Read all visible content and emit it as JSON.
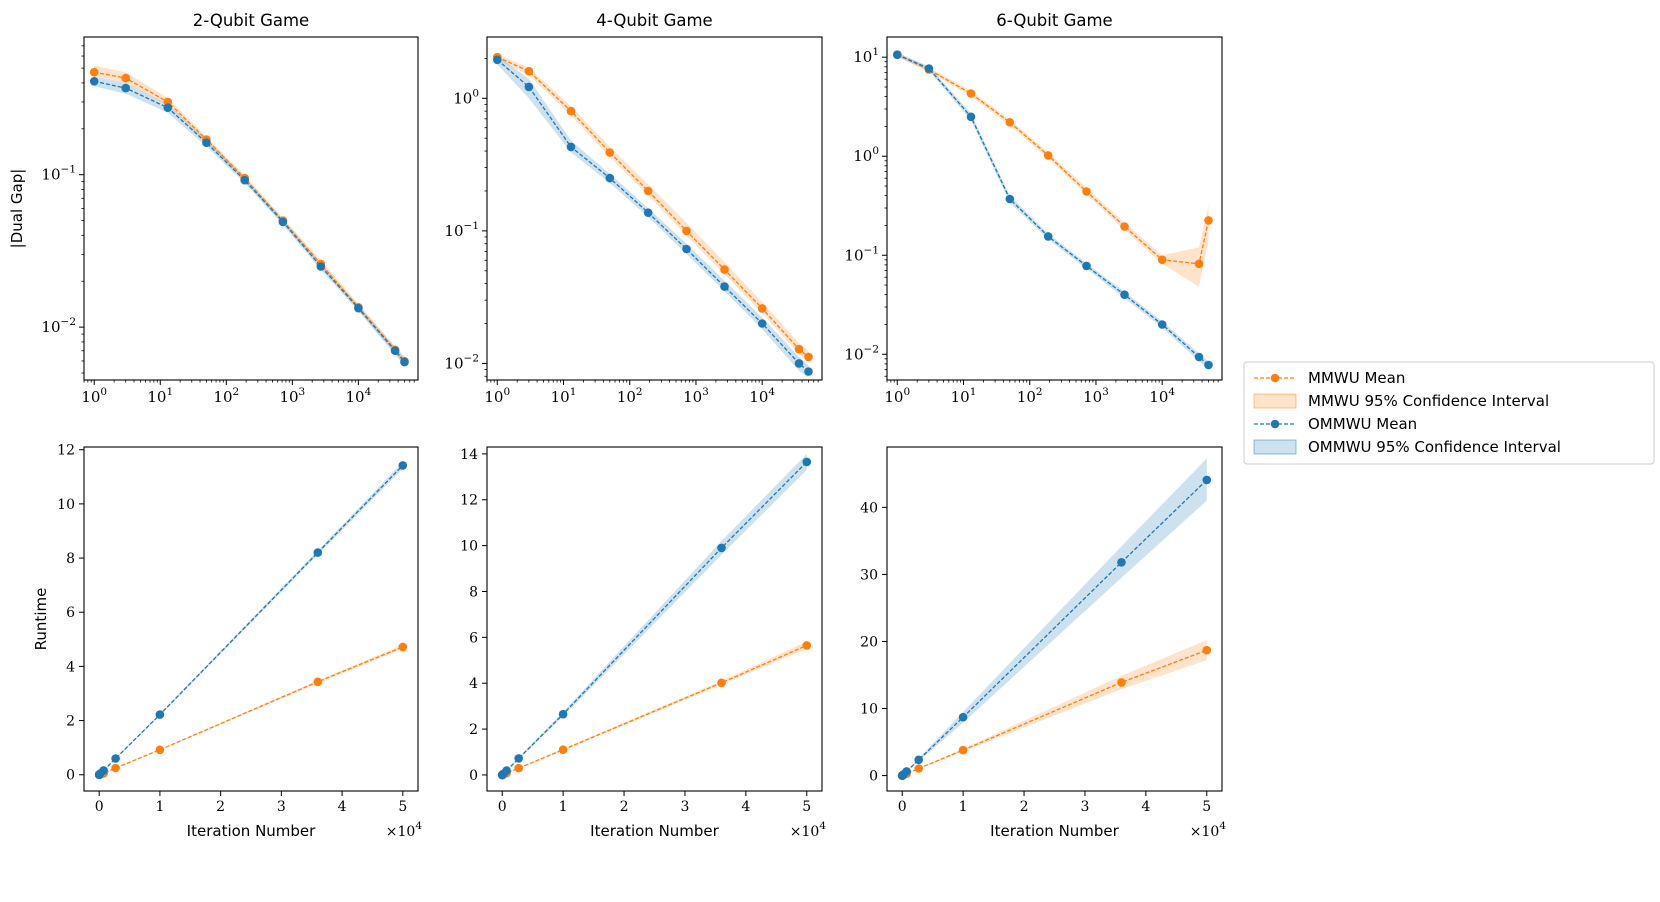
{
  "chart_data": [
    {
      "id": "dual-2",
      "type": "line",
      "title": "2-Qubit Game",
      "ylabel": "|Dual Gap|",
      "xlabel": "",
      "xscale": "log",
      "yscale": "log",
      "xlim": [
        0.7,
        80000
      ],
      "ylim": [
        0.0045,
        0.8
      ],
      "xticks": [
        {
          "v": 1,
          "e": "0"
        },
        {
          "v": 10,
          "e": "1"
        },
        {
          "v": 100,
          "e": "2"
        },
        {
          "v": 1000,
          "e": "3"
        },
        {
          "v": 10000,
          "e": "4"
        }
      ],
      "yticks": [
        {
          "v": 0.01,
          "e": "−2"
        },
        {
          "v": 0.1,
          "e": "−1"
        }
      ],
      "x": [
        1,
        3,
        13,
        50,
        190,
        720,
        2700,
        10000,
        36000,
        50000
      ],
      "series": [
        {
          "name": "MMWU Mean",
          "values": [
            0.47,
            0.43,
            0.3,
            0.17,
            0.095,
            0.05,
            0.026,
            0.0135,
            0.0071,
            0.006
          ],
          "lower": [
            0.44,
            0.4,
            0.285,
            0.163,
            0.091,
            0.048,
            0.0248,
            0.013,
            0.0067,
            0.0057
          ],
          "upper": [
            0.52,
            0.47,
            0.32,
            0.178,
            0.099,
            0.052,
            0.0275,
            0.0142,
            0.0075,
            0.0064
          ]
        },
        {
          "name": "OMMWU Mean",
          "values": [
            0.41,
            0.37,
            0.275,
            0.162,
            0.092,
            0.049,
            0.025,
            0.0133,
            0.007,
            0.0059
          ],
          "lower": [
            0.38,
            0.34,
            0.255,
            0.153,
            0.088,
            0.047,
            0.0238,
            0.0127,
            0.0066,
            0.0056
          ],
          "upper": [
            0.44,
            0.4,
            0.29,
            0.17,
            0.096,
            0.051,
            0.0262,
            0.0139,
            0.0074,
            0.0063
          ]
        }
      ]
    },
    {
      "id": "dual-4",
      "type": "line",
      "title": "4-Qubit Game",
      "ylabel": "",
      "xlabel": "",
      "xscale": "log",
      "yscale": "log",
      "xlim": [
        0.7,
        80000
      ],
      "ylim": [
        0.0075,
        2.9
      ],
      "xticks": [
        {
          "v": 1,
          "e": "0"
        },
        {
          "v": 10,
          "e": "1"
        },
        {
          "v": 100,
          "e": "2"
        },
        {
          "v": 1000,
          "e": "3"
        },
        {
          "v": 10000,
          "e": "4"
        }
      ],
      "yticks": [
        {
          "v": 0.01,
          "e": "−2"
        },
        {
          "v": 0.1,
          "e": "−1"
        },
        {
          "v": 1,
          "e": "0"
        }
      ],
      "x": [
        1,
        3,
        13,
        50,
        190,
        720,
        2700,
        10000,
        36000,
        50000
      ],
      "series": [
        {
          "name": "MMWU Mean",
          "values": [
            2.05,
            1.6,
            0.8,
            0.39,
            0.2,
            0.1,
            0.051,
            0.026,
            0.0128,
            0.0112
          ],
          "lower": [
            1.95,
            1.5,
            0.74,
            0.36,
            0.185,
            0.092,
            0.047,
            0.024,
            0.0118,
            0.0102
          ],
          "upper": [
            2.15,
            1.7,
            0.87,
            0.43,
            0.225,
            0.115,
            0.058,
            0.029,
            0.0142,
            0.0125
          ]
        },
        {
          "name": "OMMWU Mean",
          "values": [
            1.95,
            1.22,
            0.43,
            0.25,
            0.137,
            0.073,
            0.038,
            0.02,
            0.01,
            0.0087
          ],
          "lower": [
            1.8,
            1.0,
            0.39,
            0.23,
            0.127,
            0.067,
            0.035,
            0.0182,
            0.0088,
            0.0078
          ],
          "upper": [
            2.1,
            1.4,
            0.48,
            0.27,
            0.148,
            0.08,
            0.042,
            0.0222,
            0.0112,
            0.0097
          ]
        }
      ]
    },
    {
      "id": "dual-6",
      "type": "line",
      "title": "6-Qubit Game",
      "ylabel": "",
      "xlabel": "",
      "xscale": "log",
      "yscale": "log",
      "xlim": [
        0.7,
        80000
      ],
      "ylim": [
        0.0055,
        16
      ],
      "xticks": [
        {
          "v": 1,
          "e": "0"
        },
        {
          "v": 10,
          "e": "1"
        },
        {
          "v": 100,
          "e": "2"
        },
        {
          "v": 1000,
          "e": "3"
        },
        {
          "v": 10000,
          "e": "4"
        }
      ],
      "yticks": [
        {
          "v": 0.01,
          "e": "−2"
        },
        {
          "v": 0.1,
          "e": "−1"
        },
        {
          "v": 1,
          "e": "0"
        },
        {
          "v": 10,
          "e": "1"
        }
      ],
      "x": [
        1,
        3,
        13,
        50,
        190,
        720,
        2700,
        10000,
        36000,
        50000
      ],
      "series": [
        {
          "name": "MMWU Mean",
          "values": [
            10.6,
            7.5,
            4.3,
            2.2,
            1.02,
            0.44,
            0.195,
            0.09,
            0.082,
            0.225
          ],
          "lower": [
            10.1,
            7.1,
            4.05,
            2.05,
            0.95,
            0.41,
            0.18,
            0.082,
            0.048,
            0.14
          ],
          "upper": [
            11.1,
            7.9,
            4.6,
            2.35,
            1.1,
            0.48,
            0.212,
            0.1,
            0.12,
            0.32
          ]
        },
        {
          "name": "OMMWU Mean",
          "values": [
            10.6,
            7.7,
            2.5,
            0.37,
            0.155,
            0.078,
            0.04,
            0.02,
            0.0094,
            0.0078
          ],
          "lower": [
            10.1,
            7.3,
            2.3,
            0.34,
            0.145,
            0.073,
            0.037,
            0.0185,
            0.0085,
            0.0071
          ],
          "upper": [
            11.1,
            8.1,
            2.7,
            0.4,
            0.165,
            0.083,
            0.043,
            0.0215,
            0.0102,
            0.0085
          ]
        }
      ]
    },
    {
      "id": "run-2",
      "type": "line",
      "title": "",
      "ylabel": "Runtime",
      "xlabel": "Iteration Number",
      "offset": "×10",
      "offset_exp": "4",
      "xscale": "linear",
      "yscale": "linear",
      "xlim": [
        -0.25,
        5.25
      ],
      "ylim": [
        -0.6,
        12.1
      ],
      "xticks": [
        0,
        1,
        2,
        3,
        4,
        5
      ],
      "yticks": [
        0,
        2,
        4,
        6,
        8,
        10,
        12
      ],
      "x": [
        0.0001,
        0.0003,
        0.0013,
        0.005,
        0.019,
        0.072,
        0.27,
        1.0,
        3.6,
        5.0
      ],
      "series": [
        {
          "name": "MMWU Mean",
          "values": [
            0.0,
            0.0,
            0.0,
            0.0,
            0.01,
            0.05,
            0.25,
            0.92,
            3.43,
            4.72
          ],
          "lower": [
            0.0,
            0.0,
            0.0,
            0.0,
            0.01,
            0.05,
            0.24,
            0.9,
            3.38,
            4.65
          ],
          "upper": [
            0.0,
            0.0,
            0.0,
            0.0,
            0.01,
            0.05,
            0.26,
            0.94,
            3.48,
            4.8
          ]
        },
        {
          "name": "OMMWU Mean",
          "values": [
            0.0,
            0.0,
            0.0,
            0.01,
            0.05,
            0.16,
            0.6,
            2.22,
            8.2,
            11.42
          ],
          "lower": [
            0.0,
            0.0,
            0.0,
            0.01,
            0.05,
            0.15,
            0.58,
            2.18,
            8.12,
            11.3
          ],
          "upper": [
            0.0,
            0.0,
            0.0,
            0.01,
            0.05,
            0.17,
            0.62,
            2.26,
            8.28,
            11.55
          ]
        }
      ]
    },
    {
      "id": "run-4",
      "type": "line",
      "title": "",
      "ylabel": "",
      "xlabel": "Iteration Number",
      "offset": "×10",
      "offset_exp": "4",
      "xscale": "linear",
      "yscale": "linear",
      "xlim": [
        -0.25,
        5.25
      ],
      "ylim": [
        -0.7,
        14.3
      ],
      "xticks": [
        0,
        1,
        2,
        3,
        4,
        5
      ],
      "yticks": [
        0,
        2,
        4,
        6,
        8,
        10,
        12,
        14
      ],
      "x": [
        0.0001,
        0.0003,
        0.0013,
        0.005,
        0.019,
        0.072,
        0.27,
        1.0,
        3.6,
        5.0
      ],
      "series": [
        {
          "name": "MMWU Mean",
          "values": [
            0.0,
            0.0,
            0.0,
            0.0,
            0.02,
            0.08,
            0.3,
            1.1,
            4.02,
            5.65
          ],
          "lower": [
            0.0,
            0.0,
            0.0,
            0.0,
            0.02,
            0.07,
            0.28,
            1.06,
            3.94,
            5.5
          ],
          "upper": [
            0.0,
            0.0,
            0.0,
            0.0,
            0.02,
            0.09,
            0.32,
            1.14,
            4.1,
            5.82
          ]
        },
        {
          "name": "OMMWU Mean",
          "values": [
            0.0,
            0.0,
            0.0,
            0.01,
            0.05,
            0.19,
            0.72,
            2.65,
            9.9,
            13.65
          ],
          "lower": [
            0.0,
            0.0,
            0.0,
            0.01,
            0.05,
            0.18,
            0.68,
            2.55,
            9.6,
            13.3
          ],
          "upper": [
            0.0,
            0.0,
            0.0,
            0.01,
            0.05,
            0.2,
            0.76,
            2.75,
            10.2,
            14.0
          ]
        }
      ]
    },
    {
      "id": "run-6",
      "type": "line",
      "title": "",
      "ylabel": "",
      "xlabel": "Iteration Number",
      "offset": "×10",
      "offset_exp": "4",
      "xscale": "linear",
      "yscale": "linear",
      "xlim": [
        -0.25,
        5.25
      ],
      "ylim": [
        -2.3,
        49
      ],
      "xticks": [
        0,
        1,
        2,
        3,
        4,
        5
      ],
      "yticks": [
        0,
        10,
        20,
        30,
        40
      ],
      "x": [
        0.0001,
        0.0003,
        0.0013,
        0.005,
        0.019,
        0.072,
        0.27,
        1.0,
        3.6,
        5.0
      ],
      "series": [
        {
          "name": "MMWU Mean",
          "values": [
            0.0,
            0.0,
            0.0,
            0.02,
            0.07,
            0.28,
            1.05,
            3.8,
            13.9,
            18.7
          ],
          "lower": [
            0.0,
            0.0,
            0.0,
            0.02,
            0.07,
            0.26,
            0.98,
            3.6,
            12.9,
            17.2
          ],
          "upper": [
            0.0,
            0.0,
            0.0,
            0.02,
            0.07,
            0.3,
            1.12,
            4.0,
            14.9,
            20.2
          ]
        },
        {
          "name": "OMMWU Mean",
          "values": [
            0.0,
            0.0,
            0.0,
            0.04,
            0.17,
            0.63,
            2.35,
            8.7,
            31.8,
            44.1
          ],
          "lower": [
            0.0,
            0.0,
            0.0,
            0.04,
            0.15,
            0.58,
            2.15,
            7.9,
            29.5,
            41.0
          ],
          "upper": [
            0.0,
            0.0,
            0.0,
            0.04,
            0.19,
            0.68,
            2.55,
            9.5,
            34.2,
            47.3
          ]
        }
      ]
    }
  ],
  "legend": {
    "position": "center-right",
    "entries": [
      {
        "label": "MMWU Mean",
        "kind": "line",
        "series": 0
      },
      {
        "label": "MMWU 95% Confidence Interval",
        "kind": "band",
        "series": 0
      },
      {
        "label": "OMMWU Mean",
        "kind": "line",
        "series": 1
      },
      {
        "label": "OMMWU 95% Confidence Interval",
        "kind": "band",
        "series": 1
      }
    ]
  },
  "colors": {
    "mmwu": "#ff7f0e",
    "ommwu": "#1f77b4",
    "mmwu_band": "#ff7f0e",
    "ommwu_band": "#1f77b4"
  }
}
